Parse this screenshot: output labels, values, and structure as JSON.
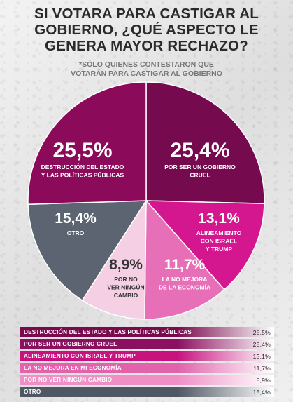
{
  "title": "SI VOTARA PARA CASTIGAR AL\nGOBIERNO, ¿QUÉ ASPECTO LE\nGENERA MAYOR RECHAZO?",
  "subtitle": "*SÓLO QUIENES CONTESTARON QUE\nVOTARÁN PARA CASTIGAR AL GOBIERNO",
  "chart_data": {
    "type": "pie",
    "categories": [
      "DESTRUCCIÓN DEL ESTADO Y LAS POLÍTICAS PÚBLICAS",
      "POR SER UN GOBIERNO CRUEL",
      "ALINEAMIENTO CON ISRAEL Y TRUMP",
      "LA NO MEJORA EN MI ECONOMÍA",
      "POR NO VER NINGÚN CAMBIO",
      "OTRO"
    ],
    "values": [
      25.5,
      25.4,
      13.1,
      11.7,
      8.9,
      15.4
    ],
    "value_labels": [
      "25,5%",
      "25,4%",
      "13,1%",
      "11,7%",
      "8,9%",
      "15,4%"
    ],
    "slice_labels": [
      "DESTRUCCIÓN DEL ESTADO\nY LAS POLÍTICAS PÚBLICAS",
      "POR SER UN GOBIERNO\nCRUEL",
      "ALINEAMIENTO\nCON ISRAEL\nY TRUMP",
      "LA NO MEJORA\nDE LA ECONOMÍA",
      "POR NO\nVER NINGÚN\nCAMBIO",
      "OTRO"
    ],
    "colors": [
      "#8c0a5a",
      "#760a4f",
      "#d4168f",
      "#e66fb7",
      "#f5cfe4",
      "#5b6470"
    ],
    "text_colors": [
      "#ffffff",
      "#ffffff",
      "#ffffff",
      "#ffffff",
      "#333333",
      "#ffffff"
    ]
  },
  "table": {
    "rows": [
      {
        "label": "DESTRUCCIÓN DEL ESTADO Y LAS POLÍTICAS PÚBLICAS",
        "value": "25,5%",
        "color": "#7a0a4d"
      },
      {
        "label": "POR SER UN GOBIERNO CRUEL",
        "value": "25,4%",
        "color": "#8c1060"
      },
      {
        "label": "ALINEAMIENTO CON ISRAEL Y TRUMP",
        "value": "13,1%",
        "color": "#c8137f"
      },
      {
        "label": "LA NO MEJORA EN MI ECONOMÍA",
        "value": "11,7%",
        "color": "#e262ac"
      },
      {
        "label": "POR NO VER NINGÚN CAMBIO",
        "value": "8,9%",
        "color": "#f08fc6"
      },
      {
        "label": "OTRO",
        "value": "15,4%",
        "color": "#4e5763"
      }
    ]
  }
}
